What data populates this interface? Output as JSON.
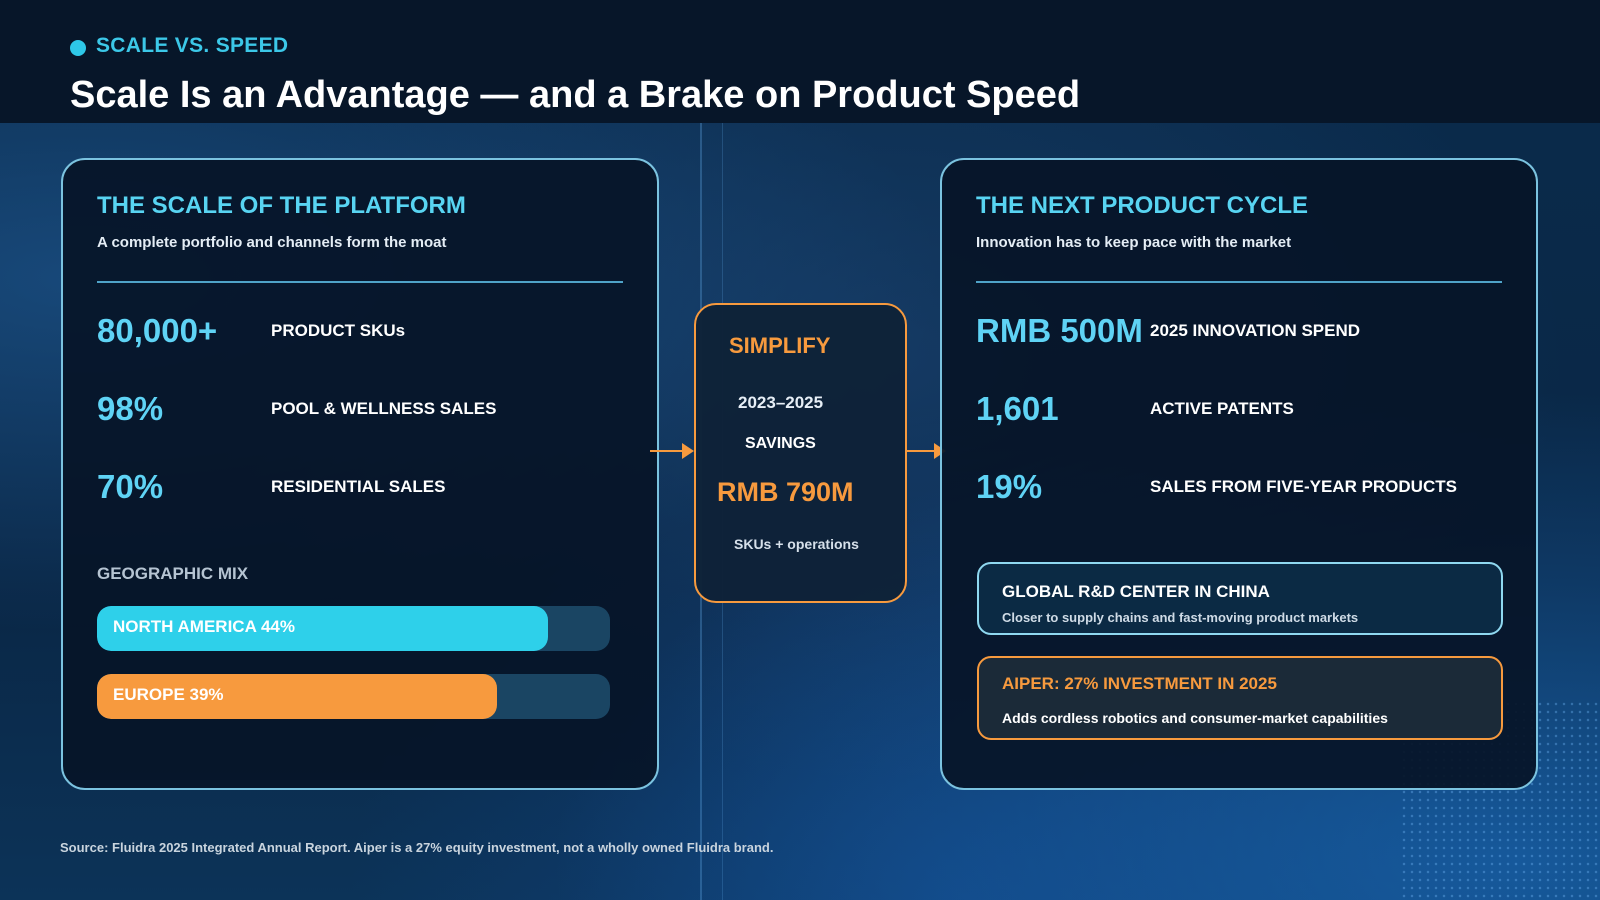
{
  "header": {
    "eyebrow": "SCALE VS. SPEED",
    "title": "Scale Is an Advantage — and a Brake on Product Speed"
  },
  "left_panel": {
    "title": "THE SCALE OF THE PLATFORM",
    "subtitle": "A complete portfolio and channels form the moat",
    "stats": [
      {
        "value": "80,000+",
        "label": "PRODUCT SKUs"
      },
      {
        "value": "98%",
        "label": "POOL & WELLNESS SALES"
      },
      {
        "value": "70%",
        "label": "RESIDENTIAL SALES"
      }
    ],
    "geo_heading": "GEOGRAPHIC MIX",
    "bars": [
      {
        "label": "NORTH AMERICA 44%",
        "percent": 44,
        "color": "#2ed0ea"
      },
      {
        "label": "EUROPE 39%",
        "percent": 39,
        "color": "#f79a3e"
      }
    ]
  },
  "center": {
    "title": "SIMPLIFY",
    "years": "2023–2025",
    "savings_label": "SAVINGS",
    "value": "RMB 790M",
    "note": "SKUs + operations"
  },
  "right_panel": {
    "title": "THE NEXT PRODUCT CYCLE",
    "subtitle": "Innovation has to keep pace with the market",
    "stats": [
      {
        "value": "RMB 500M",
        "label": "2025 INNOVATION SPEND"
      },
      {
        "value": "1,601",
        "label": "ACTIVE PATENTS"
      },
      {
        "value": "19%",
        "label": "SALES FROM FIVE-YEAR PRODUCTS"
      }
    ],
    "callouts": [
      {
        "title": "GLOBAL R&D CENTER IN CHINA",
        "text": "Closer to supply chains and fast-moving product markets"
      },
      {
        "title": "AIPER: 27% INVESTMENT IN 2025",
        "text": "Adds cordless robotics and consumer-market capabilities"
      }
    ]
  },
  "footer": {
    "source": "Source: Fluidra 2025 Integrated Annual Report. Aiper is a 27% equity investment, not a wholly owned Fluidra brand."
  },
  "colors": {
    "accent_cyan": "#2ed0ea",
    "accent_orange": "#f79a3e",
    "background": "#061628"
  }
}
